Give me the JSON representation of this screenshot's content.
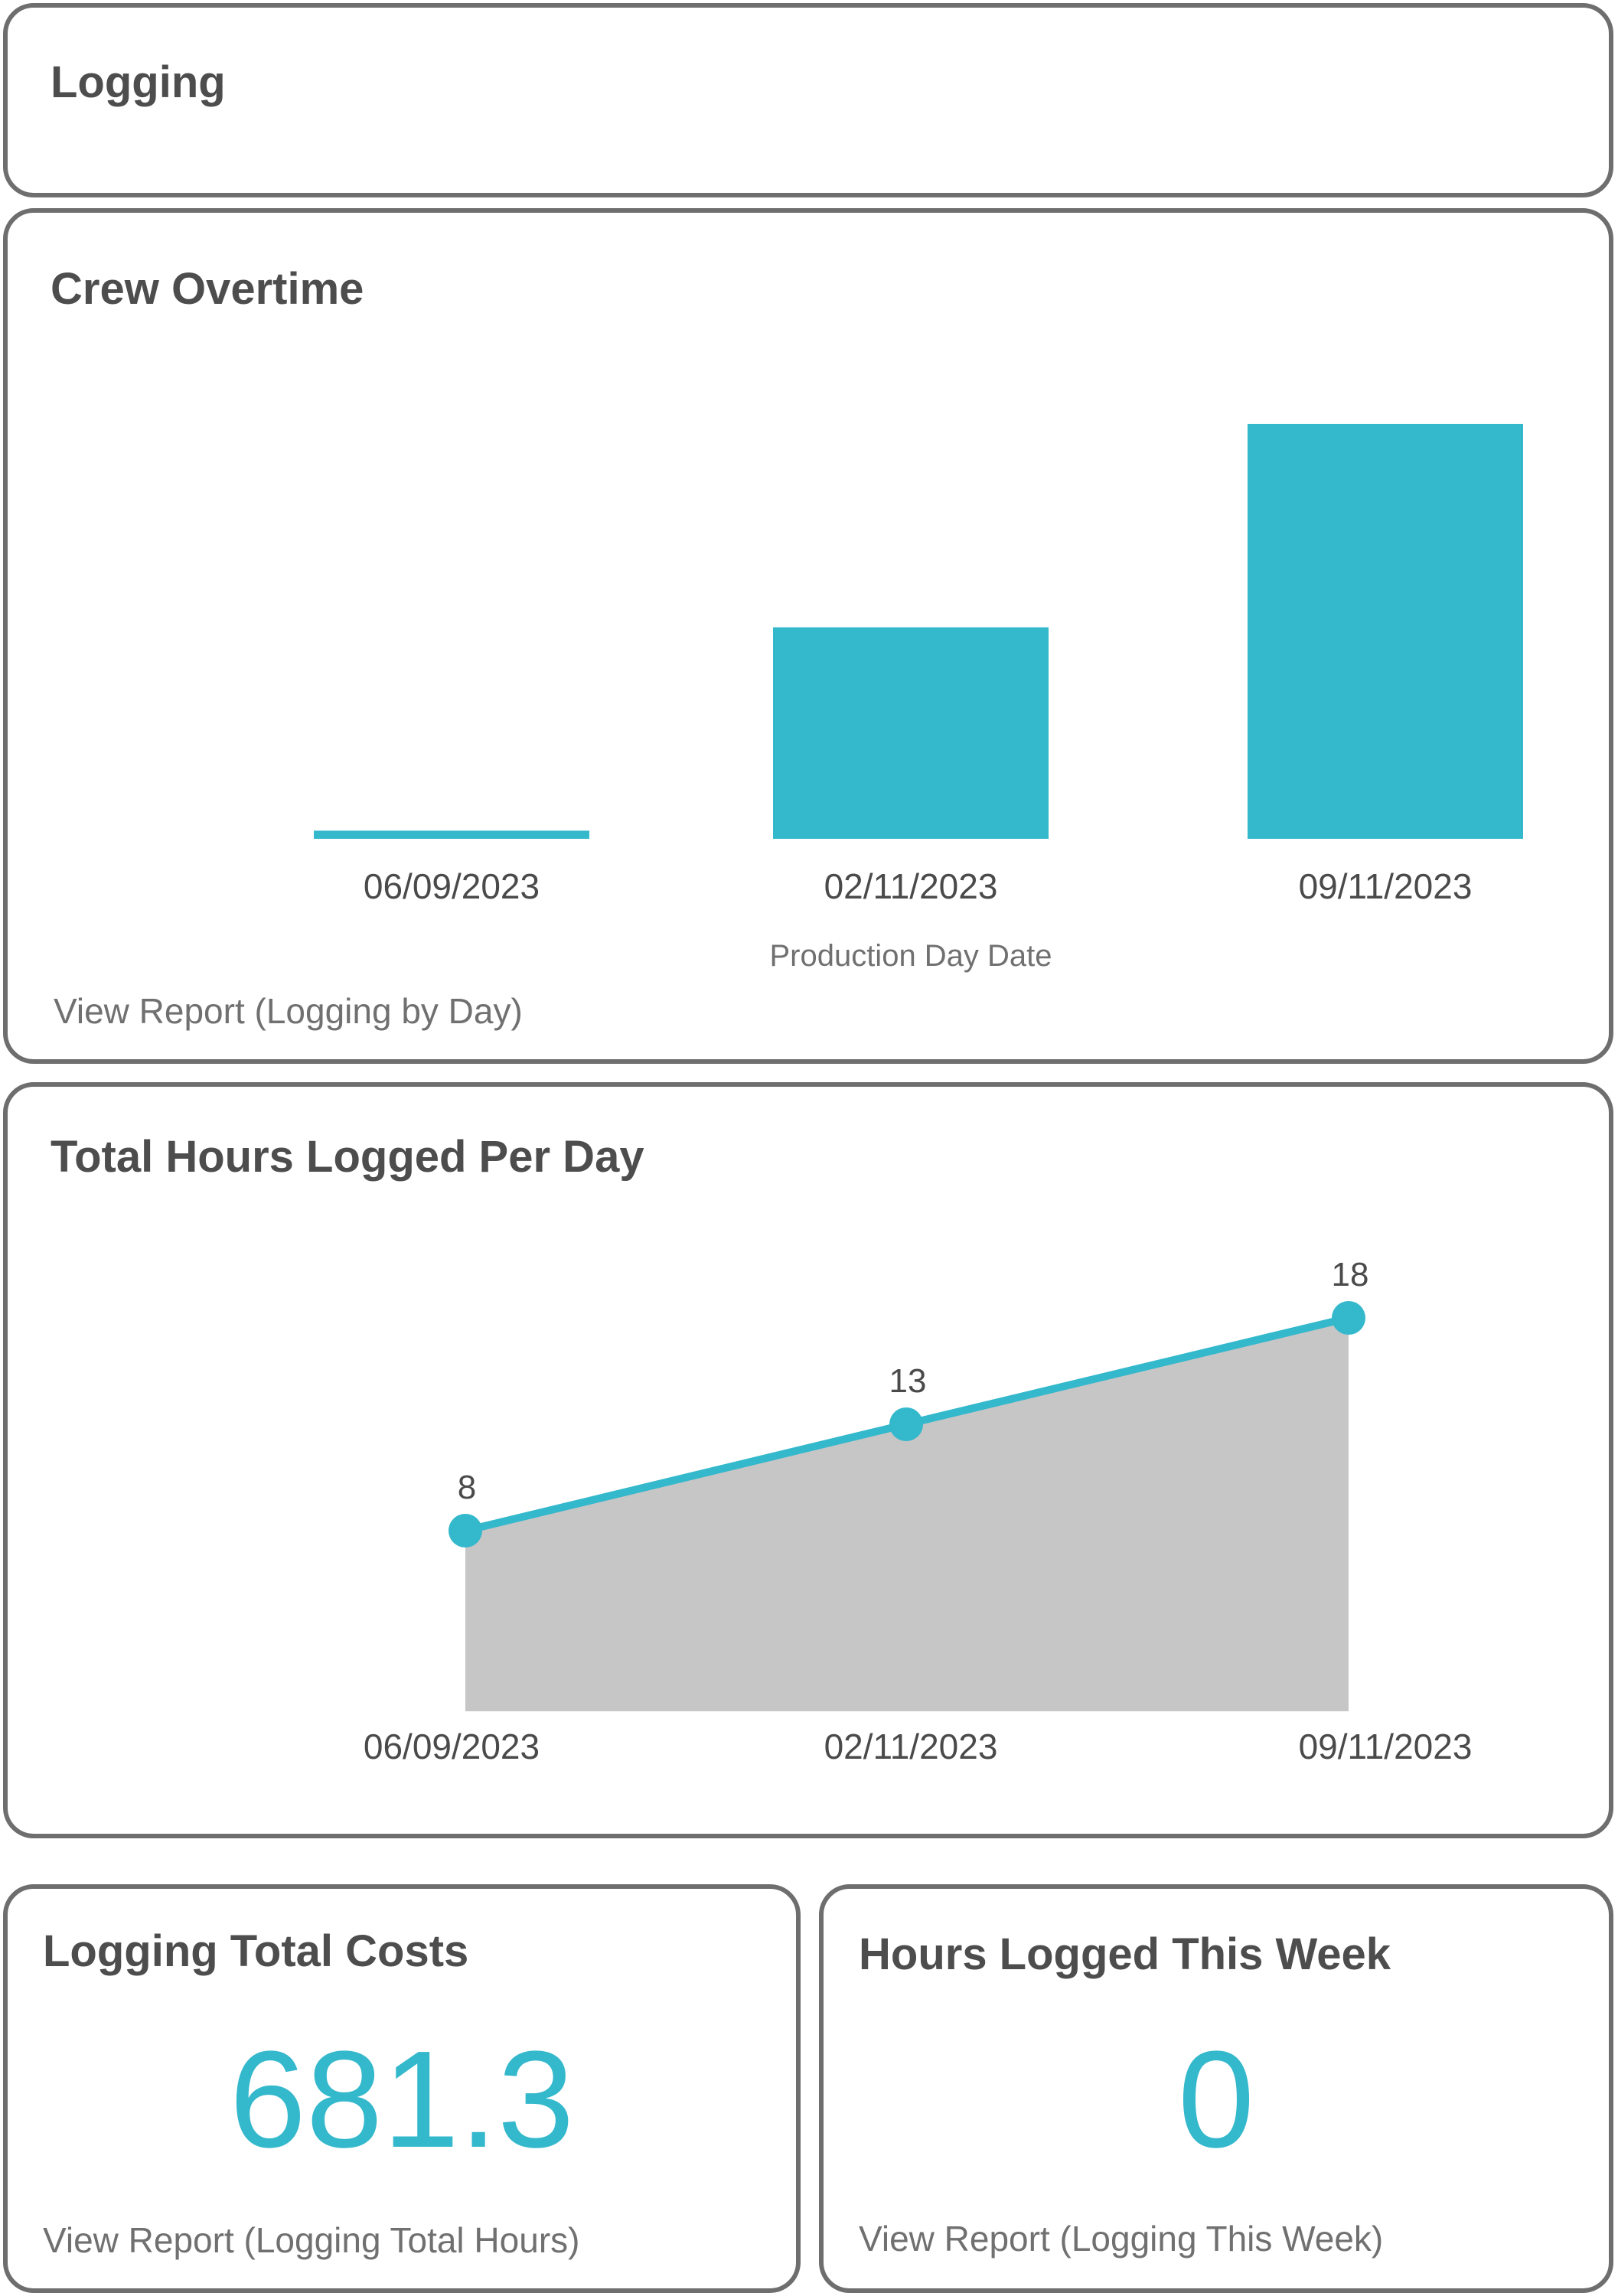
{
  "header": {
    "title": "Logging"
  },
  "crew_overtime": {
    "title": "Crew Overtime",
    "link": "View Report (Logging by Day)"
  },
  "hours_per_day": {
    "title": "Total Hours Logged Per Day"
  },
  "total_costs": {
    "title": "Logging Total Costs",
    "value": "681.3",
    "link": "View Report (Logging Total Hours)"
  },
  "hours_week": {
    "title": "Hours Logged This Week",
    "value": "0",
    "link": "View Report (Logging This Week)"
  },
  "colors": {
    "accent": "#33b8cc",
    "area_fill": "#c6c6c6",
    "border": "#6e6e6e",
    "text": "#4a4a4a"
  },
  "chart_data": [
    {
      "type": "bar",
      "title": "Crew Overtime",
      "xlabel": "Production Day Date",
      "ylabel": "",
      "categories": [
        "06/09/2023",
        "02/11/2023",
        "09/11/2023"
      ],
      "values": [
        0.2,
        5.2,
        10.2
      ],
      "ylim": [
        0,
        10.5
      ],
      "grid": false
    },
    {
      "type": "area",
      "title": "Total Hours Logged Per Day",
      "xlabel": "",
      "ylabel": "",
      "categories": [
        "06/09/2023",
        "02/11/2023",
        "09/11/2023"
      ],
      "values": [
        8,
        13,
        18
      ],
      "data_labels": [
        "8",
        "13",
        "18"
      ],
      "grid": false
    }
  ]
}
